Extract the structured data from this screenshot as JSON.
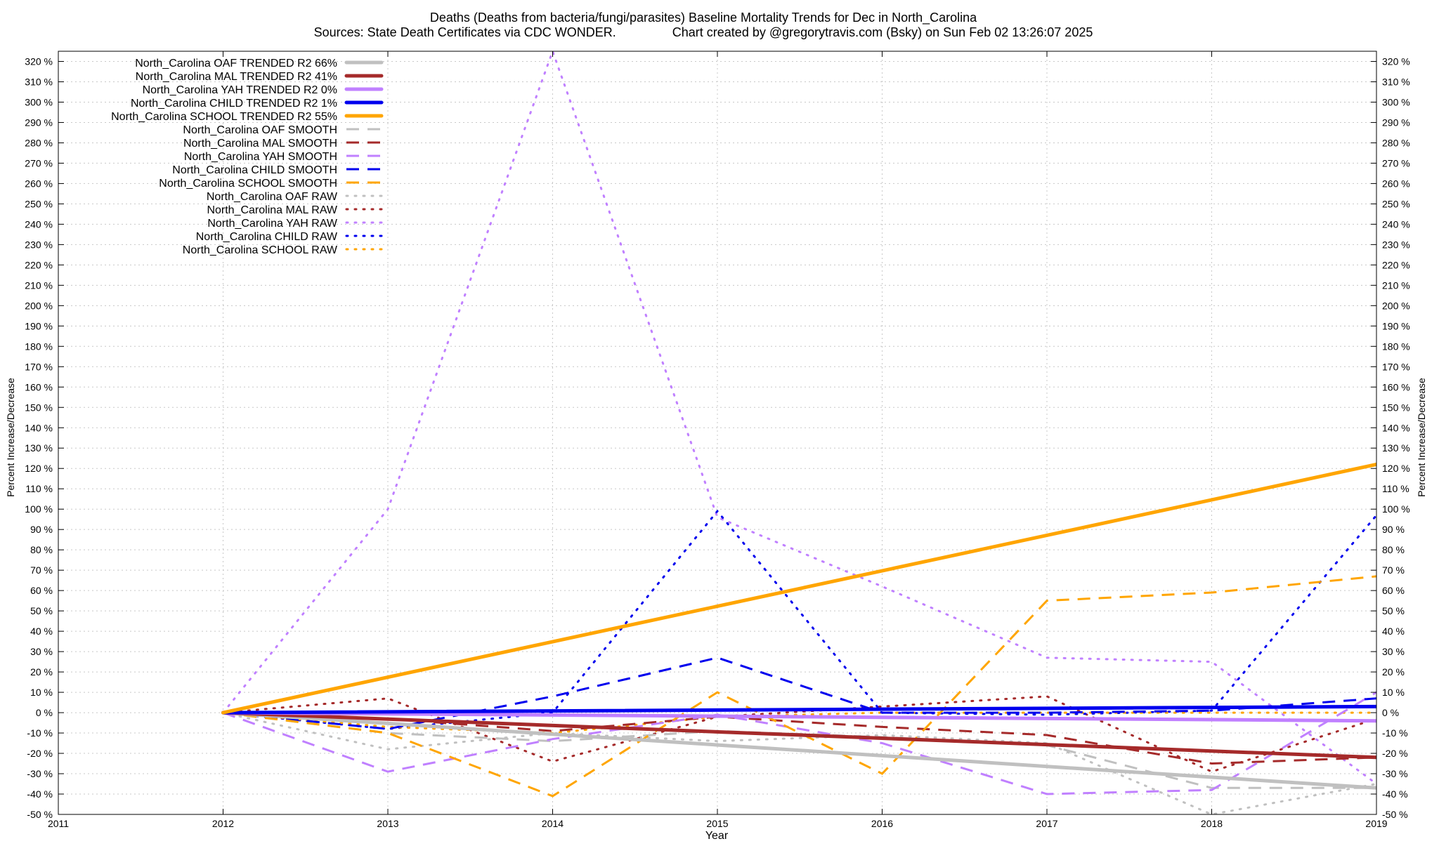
{
  "chart_data": {
    "type": "line",
    "title_line1": "Deaths (Deaths from bacteria/fungi/parasites)  Baseline Mortality Trends for Dec in North_Carolina",
    "title_line2": "Sources: State Death Certificates via CDC WONDER.                Chart created by @gregorytravis.com (Bsky) on Sun Feb 02 13:26:07 2025",
    "xlabel": "Year",
    "ylabel": "Percent Increase/Decrease",
    "ylabel_right": "Percent Increase/Decrease",
    "xlim": [
      2011,
      2019
    ],
    "ylim": [
      -50,
      325
    ],
    "x_ticks": [
      "2011",
      "2012",
      "2013",
      "2014",
      "2015",
      "2016",
      "2017",
      "2018",
      "2019"
    ],
    "y_ticks": [
      "-50 %",
      "-40 %",
      "-30 %",
      "-20 %",
      "-10 %",
      "0 %",
      "10 %",
      "20 %",
      "30 %",
      "40 %",
      "50 %",
      "60 %",
      "70 %",
      "80 %",
      "90 %",
      "100 %",
      "110 %",
      "120 %",
      "130 %",
      "140 %",
      "150 %",
      "160 %",
      "170 %",
      "180 %",
      "190 %",
      "200 %",
      "210 %",
      "220 %",
      "230 %",
      "240 %",
      "250 %",
      "260 %",
      "270 %",
      "280 %",
      "290 %",
      "300 %",
      "310 %",
      "320 %"
    ],
    "grid": true,
    "legend_position": "top-left",
    "colors": {
      "OAF": "#c0c0c0",
      "MAL": "#a52a2a",
      "YAH": "#c080ff",
      "CHILD": "#0000ee",
      "SCHOOL": "#ffa500"
    },
    "series": [
      {
        "name": "North_Carolina OAF TRENDED R2  66%",
        "group": "OAF",
        "style": "trend",
        "x": [
          2012,
          2019
        ],
        "y": [
          0,
          -37
        ]
      },
      {
        "name": "North_Carolina MAL TRENDED R2  41%",
        "group": "MAL",
        "style": "trend",
        "x": [
          2012,
          2019
        ],
        "y": [
          0,
          -22
        ]
      },
      {
        "name": "North_Carolina YAH TRENDED R2   0%",
        "group": "YAH",
        "style": "trend",
        "x": [
          2012,
          2019
        ],
        "y": [
          0,
          -4
        ]
      },
      {
        "name": "North_Carolina CHILD TRENDED R2   1%",
        "group": "CHILD",
        "style": "trend",
        "x": [
          2012,
          2019
        ],
        "y": [
          0,
          3
        ]
      },
      {
        "name": "North_Carolina SCHOOL TRENDED R2  55%",
        "group": "SCHOOL",
        "style": "trend",
        "x": [
          2012,
          2019
        ],
        "y": [
          0,
          122
        ]
      },
      {
        "name": "North_Carolina OAF SMOOTH",
        "group": "OAF",
        "style": "smooth",
        "x": [
          2012,
          2013,
          2014,
          2015,
          2016,
          2017,
          2018,
          2019
        ],
        "y": [
          0,
          -10,
          -14,
          -9,
          -12,
          -16,
          -37,
          -37
        ]
      },
      {
        "name": "North_Carolina MAL SMOOTH",
        "group": "MAL",
        "style": "smooth",
        "x": [
          2012,
          2013,
          2014,
          2015,
          2016,
          2017,
          2018,
          2019
        ],
        "y": [
          0,
          -3,
          -9,
          -2,
          -7,
          -11,
          -25,
          -22
        ]
      },
      {
        "name": "North_Carolina YAH SMOOTH",
        "group": "YAH",
        "style": "smooth",
        "x": [
          2012,
          2013,
          2014,
          2015,
          2016,
          2017,
          2018,
          2019
        ],
        "y": [
          0,
          -29,
          -13,
          -1,
          -15,
          -40,
          -38,
          10
        ]
      },
      {
        "name": "North_Carolina CHILD SMOOTH",
        "group": "CHILD",
        "style": "smooth",
        "x": [
          2012,
          2013,
          2014,
          2015,
          2016,
          2017,
          2018,
          2019
        ],
        "y": [
          0,
          -8,
          8,
          27,
          0,
          0,
          1,
          7
        ]
      },
      {
        "name": "North_Carolina SCHOOL SMOOTH",
        "group": "SCHOOL",
        "style": "smooth",
        "x": [
          2012,
          2013,
          2014,
          2015,
          2016,
          2017,
          2018,
          2019
        ],
        "y": [
          0,
          -10,
          -41,
          10,
          -30,
          55,
          59,
          67
        ]
      },
      {
        "name": "North_Carolina OAF RAW",
        "group": "OAF",
        "style": "raw",
        "x": [
          2012,
          2013,
          2014,
          2015,
          2016,
          2017,
          2018,
          2019
        ],
        "y": [
          0,
          -18,
          -10,
          -14,
          -11,
          -15,
          -50,
          -35
        ]
      },
      {
        "name": "North_Carolina MAL RAW",
        "group": "MAL",
        "style": "raw",
        "x": [
          2012,
          2013,
          2014,
          2015,
          2016,
          2017,
          2018,
          2019
        ],
        "y": [
          0,
          7,
          -24,
          -2,
          3,
          8,
          -29,
          -3
        ]
      },
      {
        "name": "North_Carolina YAH RAW",
        "group": "YAH",
        "style": "raw",
        "x": [
          2012,
          2013,
          2014,
          2015,
          2016,
          2017,
          2018,
          2019
        ],
        "y": [
          0,
          100,
          325,
          96,
          62,
          27,
          25,
          -35
        ]
      },
      {
        "name": "North_Carolina CHILD RAW",
        "group": "CHILD",
        "style": "raw",
        "x": [
          2012,
          2013,
          2014,
          2015,
          2016,
          2017,
          2018,
          2019
        ],
        "y": [
          0,
          -8,
          0,
          99,
          0,
          -1,
          1,
          97
        ]
      },
      {
        "name": "North_Carolina SCHOOL RAW",
        "group": "SCHOOL",
        "style": "raw",
        "x": [
          2012,
          2013,
          2014,
          2015,
          2016,
          2017,
          2018,
          2019
        ],
        "y": [
          0,
          -7,
          -10,
          -2,
          0,
          0,
          0,
          0
        ]
      }
    ]
  }
}
